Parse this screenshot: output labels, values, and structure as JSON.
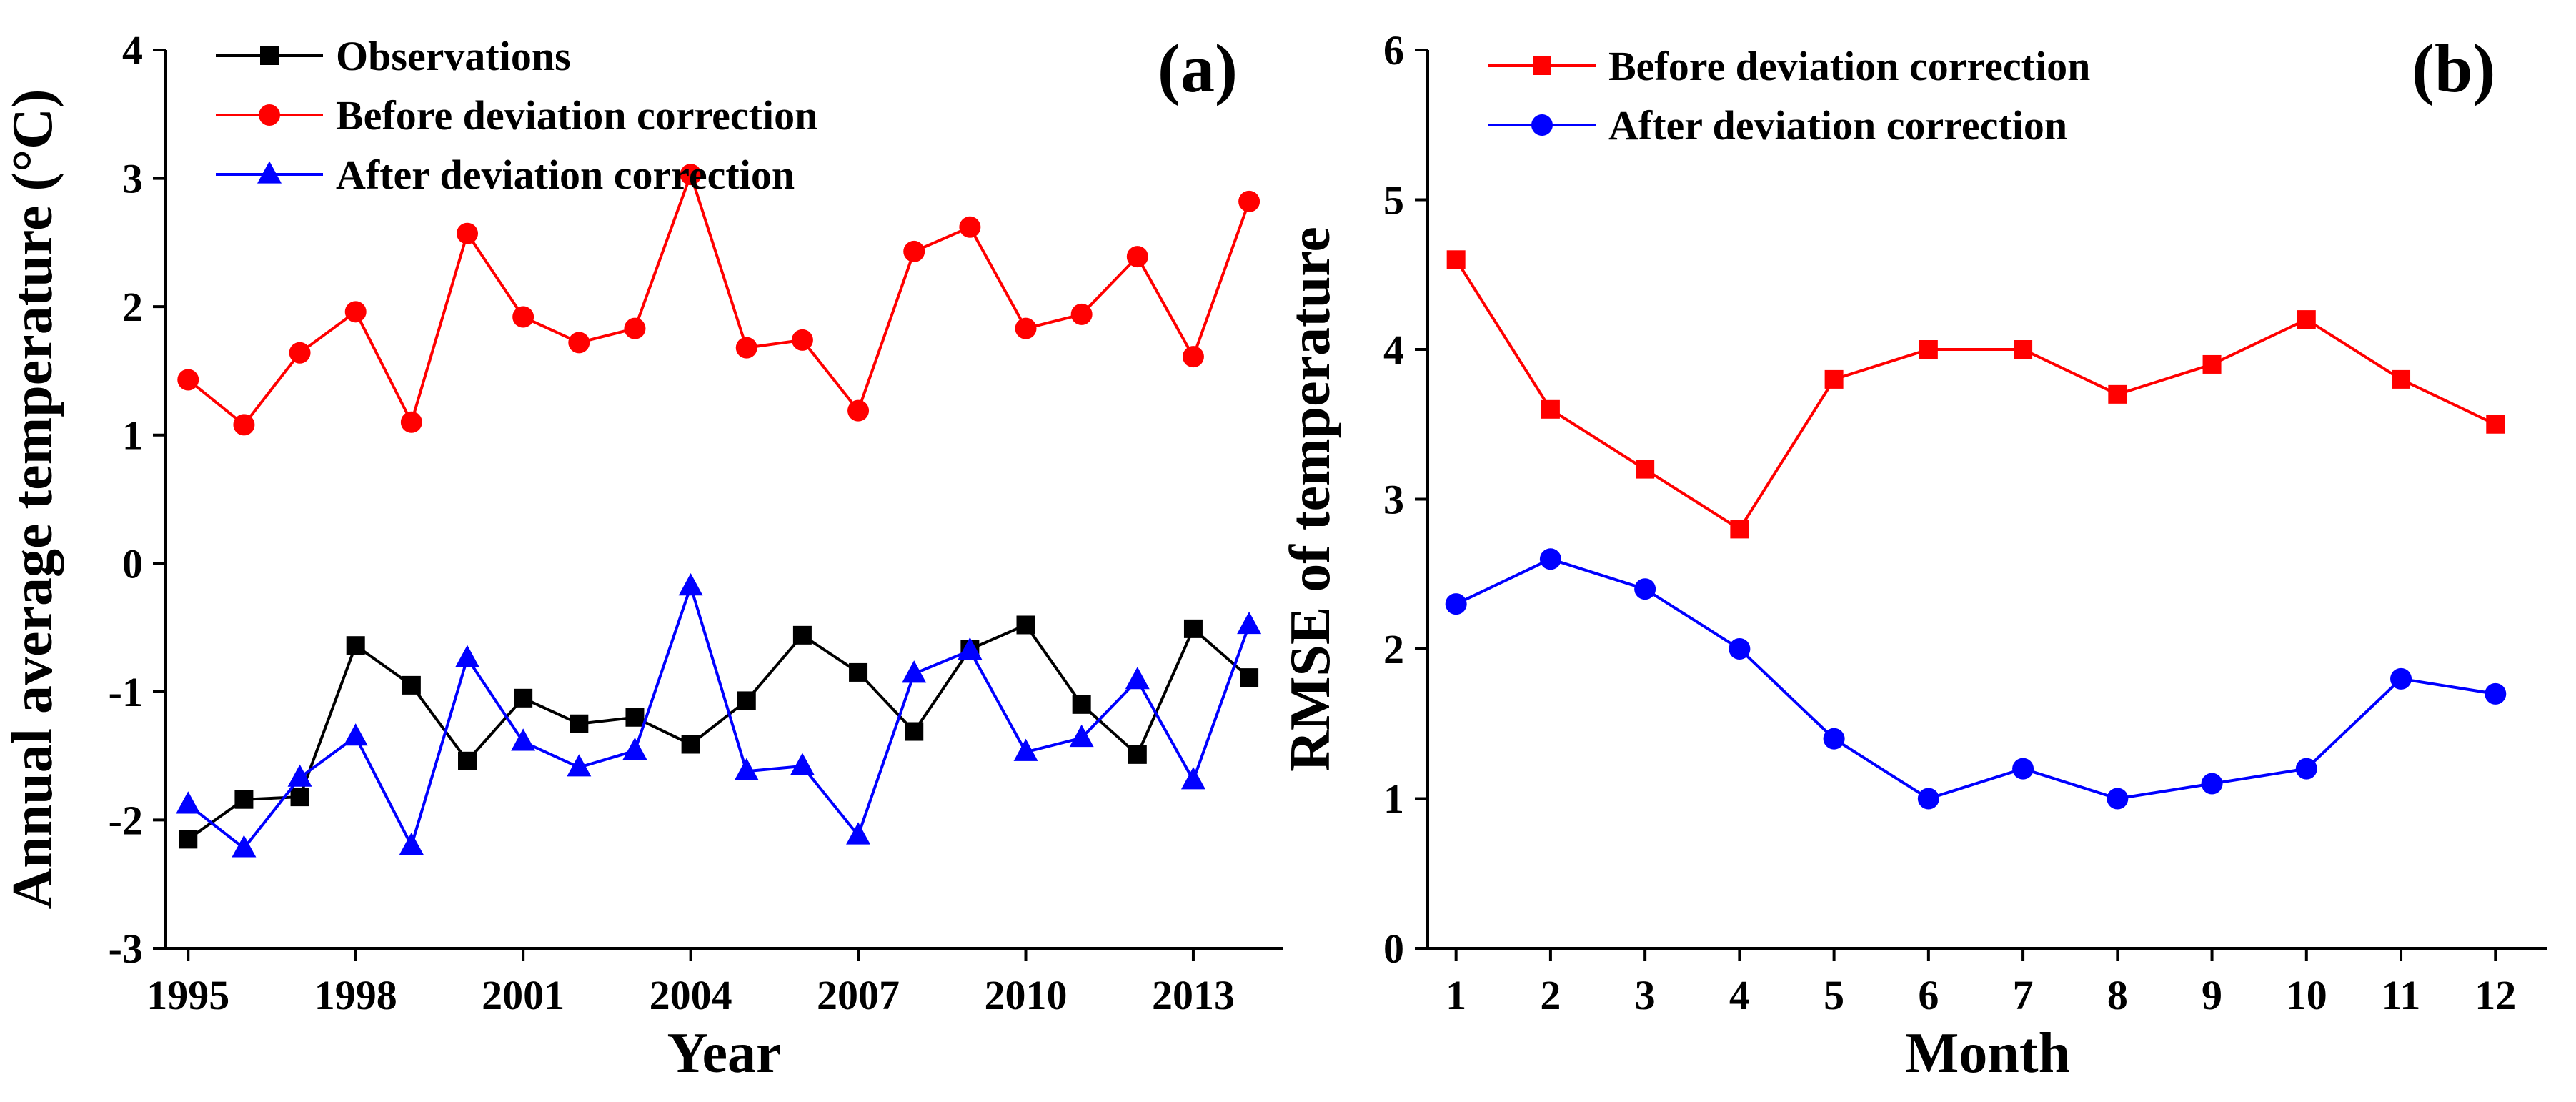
{
  "colors": {
    "black": "#000000",
    "red": "#ff0000",
    "blue": "#0000ff"
  },
  "chart_data": [
    {
      "type": "line",
      "panel_label": "(a)",
      "xlabel": "Year",
      "ylabel": "Annual average temperature (°C)",
      "xlim": [
        1994.6,
        2014.6
      ],
      "ylim": [
        -3,
        4
      ],
      "xticks": [
        1995,
        1998,
        2001,
        2004,
        2007,
        2010,
        2013
      ],
      "xtick_labels": [
        "1995",
        "1998",
        "2001",
        "2004",
        "2007",
        "2010",
        "2013"
      ],
      "yticks": [
        -3,
        -2,
        -1,
        0,
        1,
        2,
        3,
        4
      ],
      "ytick_labels": [
        "-3",
        "-2",
        "-1",
        "0",
        "1",
        "2",
        "3",
        "4"
      ],
      "legend_position": "top-left",
      "x": [
        1995,
        1996,
        1997,
        1998,
        1999,
        2000,
        2001,
        2002,
        2003,
        2004,
        2005,
        2006,
        2007,
        2008,
        2009,
        2010,
        2011,
        2012,
        2013,
        2014
      ],
      "series": [
        {
          "name": "Observations",
          "color": "black",
          "marker": "square",
          "values": [
            -2.15,
            -1.84,
            -1.82,
            -0.64,
            -0.95,
            -1.54,
            -1.05,
            -1.25,
            -1.2,
            -1.41,
            -1.07,
            -0.56,
            -0.85,
            -1.31,
            -0.67,
            -0.48,
            -1.1,
            -1.49,
            -0.51,
            -0.89
          ]
        },
        {
          "name": "Before deviation correction",
          "color": "red",
          "marker": "circle",
          "values": [
            1.43,
            1.08,
            1.64,
            1.96,
            1.1,
            2.57,
            1.92,
            1.72,
            1.83,
            3.03,
            1.68,
            1.74,
            1.19,
            2.43,
            2.62,
            1.83,
            1.94,
            2.39,
            1.61,
            2.82
          ]
        },
        {
          "name": "After deviation correction",
          "color": "blue",
          "marker": "triangle",
          "values": [
            -1.88,
            -2.22,
            -1.67,
            -1.35,
            -2.2,
            -0.74,
            -1.39,
            -1.59,
            -1.46,
            -0.18,
            -1.62,
            -1.58,
            -2.12,
            -0.86,
            -0.68,
            -1.47,
            -1.36,
            -0.91,
            -1.69,
            -0.48
          ]
        }
      ]
    },
    {
      "type": "line",
      "panel_label": "(b)",
      "xlabel": "Month",
      "ylabel": "RMSE of temperature",
      "xlim": [
        0.7,
        12.55
      ],
      "ylim": [
        0,
        6
      ],
      "xticks": [
        1,
        2,
        3,
        4,
        5,
        6,
        7,
        8,
        9,
        10,
        11,
        12
      ],
      "xtick_labels": [
        "1",
        "2",
        "3",
        "4",
        "5",
        "6",
        "7",
        "8",
        "9",
        "10",
        "11",
        "12"
      ],
      "yticks": [
        0,
        1,
        2,
        3,
        4,
        5,
        6
      ],
      "ytick_labels": [
        "0",
        "1",
        "2",
        "3",
        "4",
        "5",
        "6"
      ],
      "legend_position": "top-left",
      "x": [
        1,
        2,
        3,
        4,
        5,
        6,
        7,
        8,
        9,
        10,
        11,
        12
      ],
      "series": [
        {
          "name": "Before deviation correction",
          "color": "red",
          "marker": "square",
          "values": [
            4.6,
            3.6,
            3.2,
            2.8,
            3.8,
            4.0,
            4.0,
            3.7,
            3.9,
            4.2,
            3.8,
            3.5
          ]
        },
        {
          "name": "After deviation correction",
          "color": "blue",
          "marker": "circle",
          "values": [
            2.3,
            2.6,
            2.4,
            2.0,
            1.4,
            1.0,
            1.2,
            1.0,
            1.1,
            1.2,
            1.8,
            1.7
          ]
        }
      ]
    }
  ]
}
